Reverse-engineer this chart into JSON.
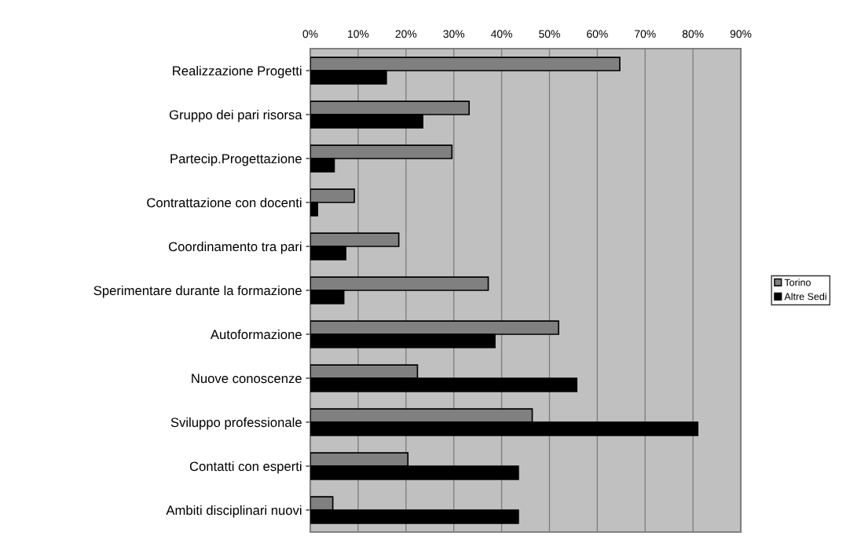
{
  "chart_data": {
    "type": "bar",
    "orientation": "horizontal",
    "categories": [
      "Realizzazione Progetti",
      "Gruppo dei pari risorsa",
      "Partecip.Progettazione",
      "Contrattazione con docenti",
      "Coordinamento tra pari",
      "Sperimentare durante la formazione",
      "Autoformazione",
      "Nuove conoscenze",
      "Sviluppo professionale",
      "Contatti con esperti",
      "Ambiti disciplinari nuovi"
    ],
    "series": [
      {
        "name": "Torino",
        "color": "#808080",
        "values": [
          64.7,
          33.2,
          29.6,
          9.2,
          18.5,
          37.2,
          51.9,
          22.4,
          46.4,
          20.4,
          4.7
        ]
      },
      {
        "name": "Altre Sedi",
        "color": "#000000",
        "values": [
          15.9,
          23.5,
          5.0,
          1.5,
          7.4,
          7.0,
          38.6,
          55.7,
          81.0,
          43.5,
          43.5
        ]
      }
    ],
    "xlim": [
      0,
      90
    ],
    "xticks": [
      {
        "value": 0,
        "label": "0%"
      },
      {
        "value": 10,
        "label": "10%"
      },
      {
        "value": 20,
        "label": "20%"
      },
      {
        "value": 30,
        "label": "30%"
      },
      {
        "value": 40,
        "label": "40%"
      },
      {
        "value": 50,
        "label": "50%"
      },
      {
        "value": 60,
        "label": "60%"
      },
      {
        "value": 70,
        "label": "70%"
      },
      {
        "value": 80,
        "label": "80%"
      },
      {
        "value": 90,
        "label": "90%"
      }
    ],
    "grid": "x",
    "legend": "right"
  }
}
